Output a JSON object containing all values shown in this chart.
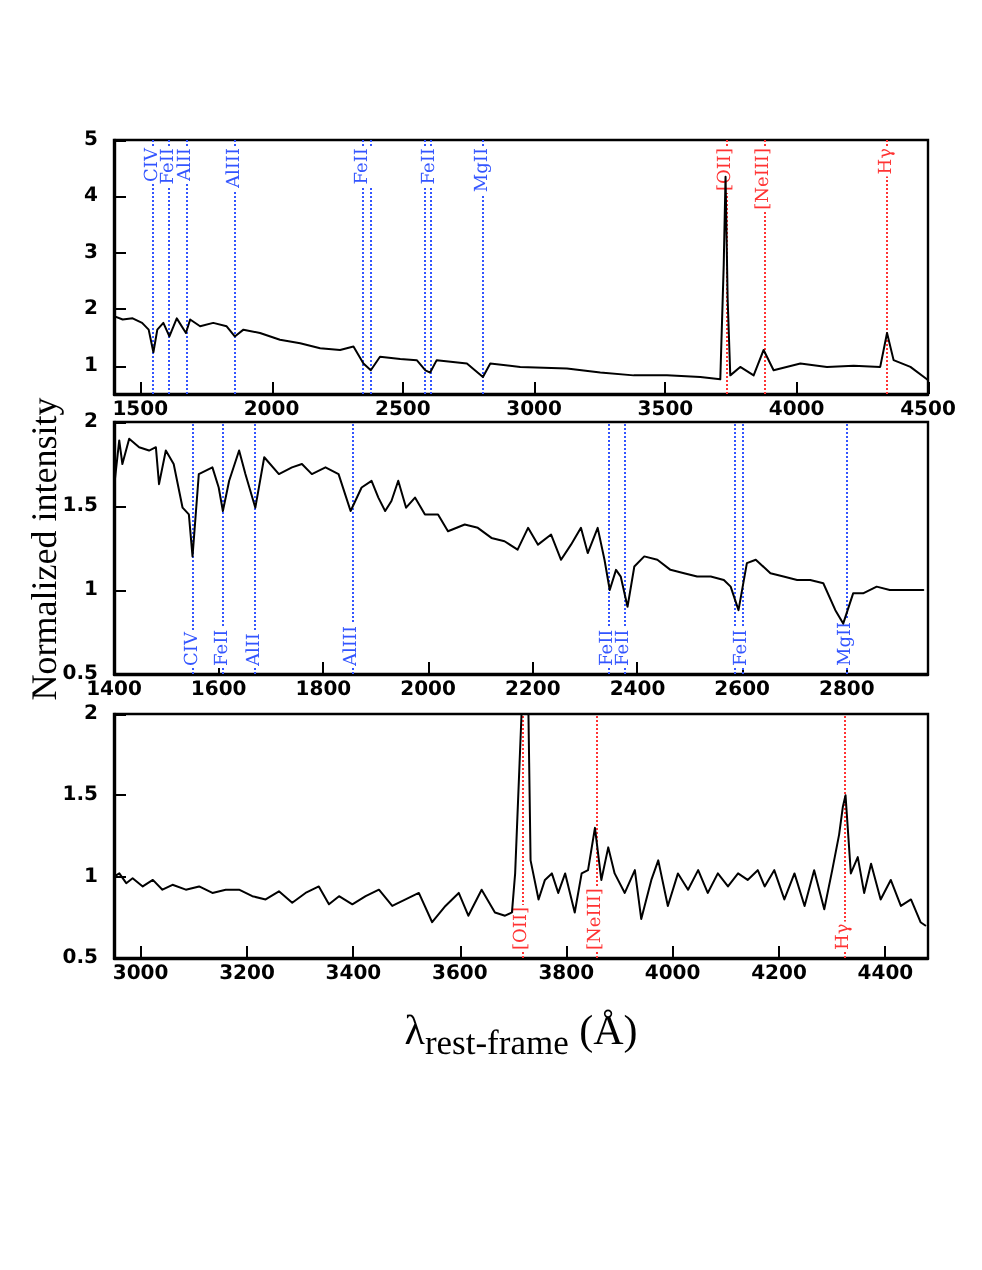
{
  "chart_data": [
    {
      "type": "line",
      "xlim": [
        1400,
        4500
      ],
      "ylim": [
        0.5,
        5
      ],
      "xticks": [
        1500,
        2000,
        2500,
        3000,
        3500,
        4000,
        4500
      ],
      "yticks": [
        1,
        2,
        3,
        4,
        5
      ],
      "series": [
        {
          "color": "#000000",
          "x": [
            1400,
            1433,
            1471,
            1507,
            1532,
            1550,
            1565,
            1588,
            1611,
            1639,
            1674,
            1690,
            1728,
            1778,
            1829,
            1860,
            1893,
            1956,
            2032,
            2109,
            2185,
            2261,
            2312,
            2350,
            2378,
            2413,
            2490,
            2553,
            2586,
            2604,
            2629,
            2744,
            2805,
            2833,
            2947,
            3125,
            3252,
            3379,
            3506,
            3633,
            3709,
            3722,
            3729,
            3737,
            3747,
            3785,
            3836,
            3874,
            3912,
            4014,
            4115,
            4217,
            4318,
            4344,
            4369,
            4433,
            4496
          ],
          "values": [
            1.88,
            1.82,
            1.84,
            1.76,
            1.64,
            1.24,
            1.64,
            1.76,
            1.52,
            1.84,
            1.58,
            1.82,
            1.7,
            1.76,
            1.7,
            1.52,
            1.64,
            1.58,
            1.46,
            1.4,
            1.31,
            1.28,
            1.34,
            1.04,
            0.92,
            1.16,
            1.12,
            1.1,
            0.92,
            0.88,
            1.1,
            1.04,
            0.8,
            1.04,
            0.98,
            0.95,
            0.88,
            0.83,
            0.83,
            0.8,
            0.76,
            2.78,
            4.35,
            2.18,
            0.83,
            0.98,
            0.83,
            1.28,
            0.92,
            1.04,
            0.98,
            1.0,
            0.98,
            1.58,
            1.1,
            0.98,
            0.76
          ]
        }
      ],
      "ref_lines": [
        {
          "axis": "x",
          "value": 1550,
          "label": "CIV",
          "color": "#3355ff",
          "line_style": "dotted"
        },
        {
          "axis": "x",
          "value": 1611,
          "label": "FeII",
          "color": "#3355ff",
          "line_style": "dotted"
        },
        {
          "axis": "x",
          "value": 1674,
          "label": "AlII",
          "color": "#3355ff",
          "line_style": "dotted"
        },
        {
          "axis": "x",
          "value": 1860,
          "label": "AlIII",
          "color": "#3355ff",
          "line_style": "dotted"
        },
        {
          "axis": "x",
          "value": 2350,
          "label": "FeII",
          "color": "#3355ff",
          "line_style": "dotted"
        },
        {
          "axis": "x",
          "value": 2378,
          "color": "#3355ff",
          "line_style": "dotted"
        },
        {
          "axis": "x",
          "value": 2586,
          "color": "#3355ff",
          "line_style": "dotted"
        },
        {
          "axis": "x",
          "value": 2604,
          "label": "FeII",
          "color": "#3355ff",
          "line_style": "dotted"
        },
        {
          "axis": "x",
          "value": 2805,
          "label": "MgII",
          "color": "#3355ff",
          "line_style": "dotted"
        },
        {
          "axis": "x",
          "value": 3729,
          "label": "[OII]",
          "color": "#ff3333",
          "line_style": "dotted"
        },
        {
          "axis": "x",
          "value": 3874,
          "label": "[NeIII]",
          "color": "#ff3333",
          "line_style": "dotted"
        },
        {
          "axis": "x",
          "value": 4344,
          "label": "Hγ",
          "color": "#ff3333",
          "line_style": "dotted"
        }
      ]
    },
    {
      "type": "line",
      "ylabel": "Normalized intensity",
      "xlim": [
        1400,
        2955
      ],
      "ylim": [
        0.5,
        2
      ],
      "xticks": [
        1400,
        1600,
        1800,
        2000,
        2200,
        2400,
        2600,
        2800
      ],
      "yticks": [
        0.5,
        1,
        1.5,
        2
      ],
      "series": [
        {
          "color": "#000000",
          "x": [
            1400,
            1410,
            1416,
            1429,
            1448,
            1467,
            1480,
            1486,
            1499,
            1514,
            1531,
            1543,
            1550,
            1562,
            1588,
            1600,
            1608,
            1620,
            1639,
            1651,
            1670,
            1687,
            1715,
            1740,
            1759,
            1778,
            1804,
            1829,
            1852,
            1873,
            1892,
            1905,
            1918,
            1930,
            1943,
            1958,
            1975,
            1994,
            2019,
            2038,
            2070,
            2095,
            2121,
            2146,
            2171,
            2191,
            2210,
            2235,
            2254,
            2273,
            2292,
            2305,
            2324,
            2337,
            2347,
            2359,
            2368,
            2381,
            2394,
            2413,
            2438,
            2463,
            2489,
            2514,
            2540,
            2565,
            2578,
            2593,
            2609,
            2626,
            2654,
            2679,
            2705,
            2730,
            2755,
            2778,
            2793,
            2812,
            2831,
            2857,
            2882,
            2908,
            2933,
            2946
          ],
          "values": [
            1.61,
            1.89,
            1.75,
            1.9,
            1.85,
            1.83,
            1.85,
            1.63,
            1.83,
            1.75,
            1.49,
            1.45,
            1.2,
            1.69,
            1.73,
            1.61,
            1.47,
            1.65,
            1.83,
            1.69,
            1.49,
            1.79,
            1.69,
            1.73,
            1.75,
            1.69,
            1.73,
            1.69,
            1.47,
            1.61,
            1.65,
            1.55,
            1.47,
            1.53,
            1.65,
            1.49,
            1.55,
            1.45,
            1.45,
            1.35,
            1.39,
            1.37,
            1.31,
            1.29,
            1.24,
            1.37,
            1.27,
            1.33,
            1.18,
            1.27,
            1.37,
            1.22,
            1.37,
            1.18,
            1.0,
            1.12,
            1.08,
            0.9,
            1.14,
            1.2,
            1.18,
            1.12,
            1.1,
            1.08,
            1.08,
            1.06,
            1.02,
            0.88,
            1.16,
            1.18,
            1.1,
            1.08,
            1.06,
            1.06,
            1.04,
            0.88,
            0.8,
            0.98,
            0.98,
            1.02,
            1.0,
            1.0,
            1.0,
            1.0
          ]
        }
      ],
      "ref_lines": [
        {
          "axis": "x",
          "value": 1550,
          "label": "CIV",
          "color": "#3355ff",
          "line_style": "dotted"
        },
        {
          "axis": "x",
          "value": 1608,
          "label": "FeII",
          "color": "#3355ff",
          "line_style": "dotted"
        },
        {
          "axis": "x",
          "value": 1670,
          "label": "AlII",
          "color": "#3355ff",
          "line_style": "dotted"
        },
        {
          "axis": "x",
          "value": 1855,
          "label": "AlIII",
          "color": "#3355ff",
          "line_style": "dotted"
        },
        {
          "axis": "x",
          "value": 2344,
          "label": "FeII",
          "color": "#3355ff",
          "line_style": "dotted"
        },
        {
          "axis": "x",
          "value": 2374,
          "label": "FeII",
          "color": "#3355ff",
          "line_style": "dotted"
        },
        {
          "axis": "x",
          "value": 2587,
          "color": "#3355ff",
          "line_style": "dotted"
        },
        {
          "axis": "x",
          "value": 2600,
          "label": "FeII",
          "color": "#3355ff",
          "line_style": "dotted"
        },
        {
          "axis": "x",
          "value": 2798,
          "label": "MgII",
          "color": "#3355ff",
          "line_style": "dotted"
        }
      ]
    },
    {
      "type": "line",
      "xlabel": "λ$_{rest-frame}$  (Å)",
      "xlim": [
        2950,
        4480
      ],
      "ylim": [
        0.5,
        2
      ],
      "xticks": [
        3000,
        3200,
        3400,
        3600,
        3800,
        4000,
        4200,
        4400
      ],
      "yticks": [
        0.5,
        1,
        1.5,
        2
      ],
      "series": [
        {
          "color": "#000000",
          "x": [
            2950,
            2960,
            2973,
            2985,
            3004,
            3023,
            3041,
            3060,
            3085,
            3110,
            3135,
            3160,
            3185,
            3210,
            3235,
            3260,
            3285,
            3310,
            3335,
            3354,
            3373,
            3398,
            3423,
            3448,
            3473,
            3498,
            3523,
            3548,
            3573,
            3598,
            3616,
            3641,
            3666,
            3685,
            3698,
            3704,
            3716,
            3722,
            3729,
            3733,
            3748,
            3760,
            3773,
            3785,
            3798,
            3816,
            3829,
            3841,
            3854,
            3866,
            3879,
            3891,
            3910,
            3929,
            3941,
            3960,
            3973,
            3991,
            4010,
            4029,
            4048,
            4066,
            4085,
            4104,
            4123,
            4141,
            4160,
            4173,
            4191,
            4210,
            4229,
            4248,
            4266,
            4285,
            4300,
            4313,
            4320,
            4325,
            4335,
            4348,
            4360,
            4373,
            4391,
            4410,
            4429,
            4448,
            4466,
            4475
          ],
          "values": [
            1.0,
            1.02,
            0.96,
            0.99,
            0.94,
            0.98,
            0.92,
            0.95,
            0.92,
            0.94,
            0.9,
            0.92,
            0.92,
            0.88,
            0.86,
            0.91,
            0.84,
            0.9,
            0.94,
            0.83,
            0.88,
            0.83,
            0.88,
            0.92,
            0.82,
            0.86,
            0.9,
            0.72,
            0.82,
            0.9,
            0.76,
            0.92,
            0.78,
            0.76,
            0.78,
            1.02,
            2.0,
            null,
            2.0,
            1.1,
            0.86,
            0.98,
            1.02,
            0.9,
            1.02,
            0.78,
            1.02,
            1.04,
            1.3,
            0.98,
            1.18,
            1.02,
            0.9,
            1.04,
            0.74,
            0.98,
            1.1,
            0.82,
            1.02,
            0.92,
            1.04,
            0.9,
            1.02,
            0.94,
            1.02,
            0.98,
            1.04,
            0.94,
            1.04,
            0.86,
            1.02,
            0.82,
            1.04,
            0.8,
            1.04,
            1.26,
            1.43,
            1.5,
            1.02,
            1.12,
            0.9,
            1.08,
            0.86,
            0.98,
            0.82,
            0.86,
            0.72,
            0.7
          ]
        }
      ],
      "ref_lines": [
        {
          "axis": "x",
          "value": 3716,
          "label": "[OII]",
          "color": "#ff3333",
          "line_style": "dotted"
        },
        {
          "axis": "x",
          "value": 3856,
          "label": "[NeIII]",
          "color": "#ff3333",
          "line_style": "dotted"
        },
        {
          "axis": "x",
          "value": 4322,
          "label": "Hγ",
          "color": "#ff3333",
          "line_style": "dotted"
        }
      ]
    }
  ]
}
